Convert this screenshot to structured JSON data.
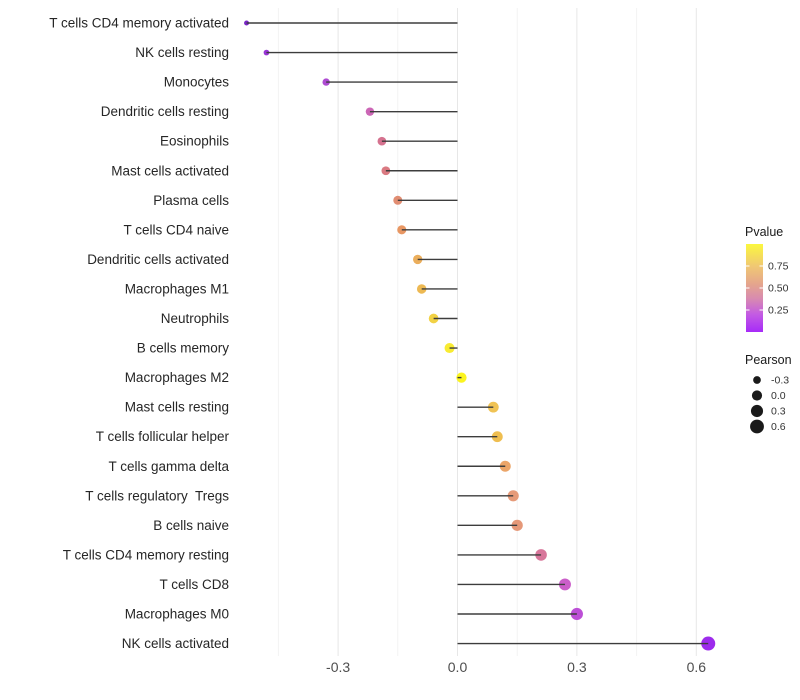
{
  "chart_data": {
    "type": "lollipop",
    "title": "",
    "xlabel": "",
    "ylabel": "",
    "x_ticks": [
      -0.3,
      0.0,
      0.3,
      0.6
    ],
    "x_tick_labels": [
      "-0.3",
      "0.0",
      "0.3",
      "0.6"
    ],
    "x_minor_ticks": [
      -0.45,
      -0.15,
      0.15,
      0.45
    ],
    "xlim": [
      -0.56,
      0.67
    ],
    "grid": true,
    "points": [
      {
        "label": "T cells CD4 memory activated",
        "pearson": -0.53,
        "color": "#7a27c6"
      },
      {
        "label": "NK cells resting",
        "pearson": -0.48,
        "color": "#9935d6"
      },
      {
        "label": "Monocytes",
        "pearson": -0.33,
        "color": "#ae4bd2"
      },
      {
        "label": "Dendritic cells resting",
        "pearson": -0.22,
        "color": "#cc66b6"
      },
      {
        "label": "Eosinophils",
        "pearson": -0.19,
        "color": "#d5728f"
      },
      {
        "label": "Mast cells activated",
        "pearson": -0.18,
        "color": "#da7a82"
      },
      {
        "label": "Plasma cells",
        "pearson": -0.15,
        "color": "#e18d72"
      },
      {
        "label": "T cells CD4 naive",
        "pearson": -0.14,
        "color": "#e89763"
      },
      {
        "label": "Dendritic cells activated",
        "pearson": -0.1,
        "color": "#ebae5c"
      },
      {
        "label": "Macrophages M1",
        "pearson": -0.09,
        "color": "#edb953"
      },
      {
        "label": "Neutrophils",
        "pearson": -0.06,
        "color": "#f2d245"
      },
      {
        "label": "B cells memory",
        "pearson": -0.02,
        "color": "#f8eb32"
      },
      {
        "label": "Macrophages M2",
        "pearson": 0.01,
        "color": "#fbf41f"
      },
      {
        "label": "Mast cells resting",
        "pearson": 0.09,
        "color": "#f0c355"
      },
      {
        "label": "T cells follicular helper",
        "pearson": 0.1,
        "color": "#efbe50"
      },
      {
        "label": "T cells gamma delta",
        "pearson": 0.12,
        "color": "#eba569"
      },
      {
        "label": "T cells regulatory  Tregs",
        "pearson": 0.14,
        "color": "#e69b79"
      },
      {
        "label": "B cells naive",
        "pearson": 0.15,
        "color": "#e59878"
      },
      {
        "label": "T cells CD4 memory resting",
        "pearson": 0.21,
        "color": "#d8779b"
      },
      {
        "label": "T cells CD8",
        "pearson": 0.27,
        "color": "#cb5ec9"
      },
      {
        "label": "Macrophages M0",
        "pearson": 0.3,
        "color": "#bc4fd6"
      },
      {
        "label": "NK cells activated",
        "pearson": 0.63,
        "color": "#9d2bec"
      }
    ],
    "legend_pvalue": {
      "title": "Pvalue",
      "range": [
        0,
        1
      ],
      "tick_values": [
        0.75,
        0.5,
        0.25
      ],
      "tick_labels": [
        "0.75",
        "0.50",
        "0.25"
      ],
      "gradient": [
        {
          "offset": 0.0,
          "color": "#fbf73e"
        },
        {
          "offset": 0.25,
          "color": "#f0c873"
        },
        {
          "offset": 0.45,
          "color": "#e5a68c"
        },
        {
          "offset": 0.62,
          "color": "#d88bb0"
        },
        {
          "offset": 0.8,
          "color": "#c35be3"
        },
        {
          "offset": 1.0,
          "color": "#a72bf8"
        }
      ]
    },
    "legend_pearson": {
      "title": "Pearson",
      "entries": [
        {
          "label": "-0.3",
          "value": -0.3
        },
        {
          "label": "0.0",
          "value": 0.0
        },
        {
          "label": "0.3",
          "value": 0.3
        },
        {
          "label": "0.6",
          "value": 0.6
        }
      ],
      "dot_color": "#1a1a1a"
    }
  },
  "colors": {
    "background": "#ffffff",
    "stem": "#3d3d3d",
    "grid_major": "#e7e7e7",
    "grid_minor": "#f3f3f3",
    "category_label": "#262626",
    "axis_tick_label": "#4d4d4d",
    "legend_title": "#1a1a1a",
    "legend_label": "#333333"
  }
}
